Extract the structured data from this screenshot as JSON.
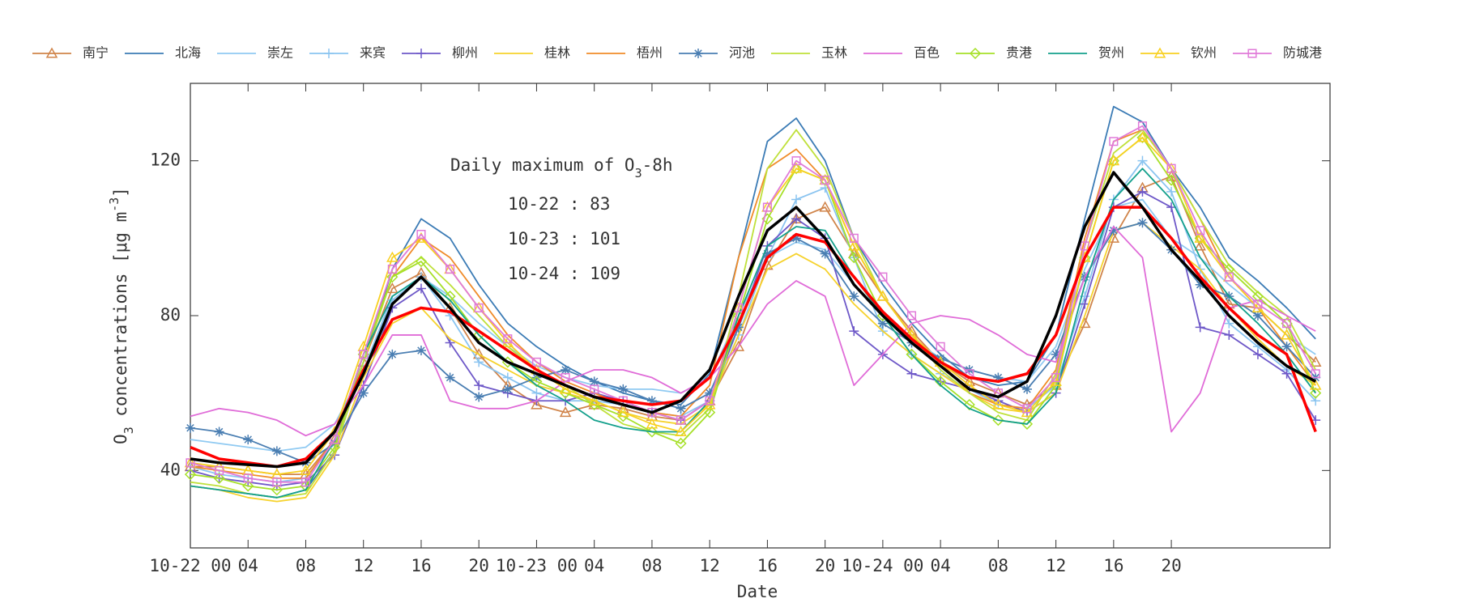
{
  "chart_data": {
    "type": "line",
    "xlabel": "Date",
    "ylabel": [
      "O",
      "3",
      " concentrations [μg m",
      "-3",
      "]"
    ],
    "annotation": {
      "title": [
        "Daily maximum of O",
        "3",
        "-8h"
      ],
      "lines": [
        "10-22 : 83",
        "10-23 : 101",
        "10-24 : 109"
      ]
    },
    "x": [
      0,
      2,
      4,
      6,
      8,
      10,
      12,
      14,
      16,
      18,
      20,
      22,
      24,
      26,
      28,
      30,
      32,
      34,
      36,
      38,
      40,
      42,
      44,
      46,
      48,
      50,
      52,
      54,
      56,
      58,
      60,
      62,
      64,
      66,
      68,
      70,
      72,
      74,
      76,
      78
    ],
    "xlim": [
      0,
      79
    ],
    "xticks": [
      {
        "value": 0,
        "label": "10-22 00"
      },
      {
        "value": 4,
        "label": "04"
      },
      {
        "value": 8,
        "label": "08"
      },
      12,
      16,
      20,
      {
        "value": 24,
        "label": "10-23 00"
      },
      {
        "value": 28,
        "label": "04"
      },
      {
        "value": 32,
        "label": "08"
      },
      {
        "value": 36,
        "label": "12"
      },
      {
        "value": 40,
        "label": "16"
      },
      {
        "value": 44,
        "label": "20"
      },
      {
        "value": 48,
        "label": "10-24 00"
      },
      {
        "value": 52,
        "label": "04"
      },
      {
        "value": 56,
        "label": "08"
      },
      {
        "value": 60,
        "label": "12"
      },
      {
        "value": 64,
        "label": "16"
      },
      {
        "value": 68,
        "label": "20"
      }
    ],
    "ylim": [
      20,
      140
    ],
    "yticks": [
      40,
      80,
      120
    ],
    "series": [
      {
        "name": "南宁",
        "color": "#d0844a",
        "marker": "triangle",
        "values": [
          41,
          41,
          40,
          39,
          39,
          48,
          68,
          87,
          91,
          82,
          70,
          62,
          57,
          55,
          57,
          56,
          54,
          53,
          58,
          72,
          93,
          105,
          108,
          96,
          85,
          76,
          68,
          63,
          60,
          57,
          62,
          78,
          100,
          113,
          116,
          98,
          83,
          82,
          75,
          68
        ]
      },
      {
        "name": "北海",
        "color": "#3b7bb5",
        "marker": null,
        "values": [
          36,
          35,
          34,
          33,
          35,
          45,
          68,
          92,
          105,
          100,
          88,
          78,
          72,
          67,
          63,
          60,
          58,
          57,
          65,
          95,
          125,
          131,
          120,
          100,
          88,
          78,
          70,
          64,
          62,
          63,
          75,
          105,
          134,
          130,
          118,
          108,
          95,
          89,
          82,
          74
        ]
      },
      {
        "name": "崇左",
        "color": "#90caf2",
        "marker": null,
        "values": [
          48,
          47,
          46,
          45,
          46,
          52,
          66,
          85,
          90,
          85,
          78,
          72,
          67,
          64,
          62,
          61,
          61,
          60,
          64,
          80,
          95,
          99,
          97,
          88,
          80,
          74,
          69,
          66,
          64,
          63,
          72,
          92,
          108,
          110,
          100,
          95,
          88,
          82,
          75,
          70
        ]
      },
      {
        "name": "来宾",
        "color": "#8ac4f0",
        "marker": "plus",
        "values": [
          41,
          39,
          38,
          37,
          38,
          47,
          66,
          84,
          90,
          80,
          68,
          64,
          60,
          58,
          58,
          57,
          55,
          54,
          58,
          75,
          95,
          110,
          113,
          95,
          76,
          70,
          65,
          61,
          57,
          56,
          62,
          85,
          110,
          120,
          112,
          92,
          78,
          72,
          66,
          58
        ]
      },
      {
        "name": "柳州",
        "color": "#6e58c8",
        "marker": "plus",
        "values": [
          40,
          38,
          37,
          36,
          37,
          44,
          62,
          82,
          87,
          73,
          62,
          60,
          58,
          58,
          60,
          58,
          55,
          53,
          58,
          77,
          98,
          105,
          100,
          76,
          70,
          65,
          63,
          61,
          58,
          55,
          60,
          83,
          108,
          112,
          108,
          77,
          75,
          70,
          65,
          53
        ]
      },
      {
        "name": "桂林",
        "color": "#f6d22c",
        "marker": null,
        "values": [
          36,
          35,
          33,
          32,
          33,
          44,
          64,
          78,
          82,
          74,
          70,
          66,
          62,
          60,
          58,
          55,
          53,
          52,
          57,
          75,
          92,
          96,
          92,
          83,
          76,
          70,
          65,
          60,
          56,
          55,
          60,
          80,
          102,
          104,
          98,
          92,
          82,
          74,
          67,
          62
        ]
      },
      {
        "name": "梧州",
        "color": "#f08c2a",
        "marker": null,
        "values": [
          41,
          40,
          39,
          38,
          38,
          48,
          70,
          90,
          100,
          95,
          85,
          75,
          68,
          63,
          60,
          57,
          55,
          54,
          62,
          95,
          118,
          123,
          115,
          98,
          85,
          75,
          68,
          60,
          57,
          56,
          66,
          100,
          125,
          128,
          118,
          105,
          90,
          82,
          72,
          62
        ]
      },
      {
        "name": "河池",
        "color": "#4a7eb2",
        "marker": "star",
        "values": [
          51,
          50,
          48,
          45,
          42,
          47,
          60,
          70,
          71,
          64,
          59,
          61,
          64,
          66,
          63,
          61,
          58,
          56,
          60,
          77,
          96,
          100,
          96,
          85,
          78,
          73,
          69,
          66,
          64,
          61,
          70,
          90,
          102,
          104,
          97,
          88,
          85,
          80,
          72,
          64
        ]
      },
      {
        "name": "玉林",
        "color": "#bfe03a",
        "marker": null,
        "values": [
          37,
          36,
          34,
          33,
          34,
          45,
          68,
          90,
          95,
          88,
          80,
          72,
          66,
          62,
          57,
          52,
          50,
          49,
          56,
          85,
          118,
          128,
          118,
          100,
          85,
          75,
          66,
          60,
          55,
          53,
          65,
          98,
          122,
          128,
          118,
          105,
          93,
          86,
          80,
          66
        ]
      },
      {
        "name": "百色",
        "color": "#e06cd8",
        "marker": null,
        "values": [
          54,
          56,
          55,
          53,
          49,
          52,
          62,
          75,
          75,
          58,
          56,
          56,
          58,
          63,
          66,
          66,
          64,
          60,
          64,
          72,
          83,
          89,
          85,
          62,
          70,
          78,
          80,
          79,
          75,
          70,
          68,
          90,
          103,
          95,
          50,
          60,
          82,
          84,
          80,
          76
        ]
      },
      {
        "name": "贵港",
        "color": "#a6e028",
        "marker": "diamond",
        "values": [
          39,
          38,
          36,
          35,
          36,
          46,
          70,
          90,
          94,
          85,
          75,
          68,
          63,
          60,
          57,
          54,
          50,
          47,
          55,
          80,
          105,
          118,
          115,
          95,
          80,
          70,
          63,
          57,
          53,
          52,
          62,
          95,
          120,
          126,
          115,
          100,
          92,
          85,
          78,
          60
        ]
      },
      {
        "name": "贺州",
        "color": "#14a08c",
        "marker": null,
        "values": [
          36,
          35,
          34,
          33,
          35,
          48,
          70,
          85,
          90,
          84,
          75,
          68,
          62,
          58,
          53,
          51,
          50,
          50,
          58,
          80,
          98,
          103,
          102,
          90,
          80,
          70,
          62,
          56,
          53,
          52,
          60,
          88,
          110,
          118,
          110,
          95,
          85,
          78,
          70,
          60
        ]
      },
      {
        "name": "钦州",
        "color": "#f8d020",
        "marker": "triangle",
        "values": [
          42,
          41,
          40,
          39,
          40,
          50,
          72,
          95,
          100,
          92,
          82,
          73,
          66,
          61,
          58,
          55,
          52,
          50,
          57,
          82,
          108,
          118,
          115,
          98,
          85,
          75,
          68,
          62,
          57,
          55,
          63,
          95,
          120,
          126,
          118,
          100,
          90,
          82,
          75,
          62
        ]
      },
      {
        "name": "防城港",
        "color": "#e07ad8",
        "marker": "square",
        "values": [
          42,
          40,
          38,
          37,
          37,
          48,
          70,
          92,
          101,
          92,
          82,
          74,
          68,
          64,
          61,
          58,
          55,
          53,
          58,
          82,
          108,
          120,
          115,
          100,
          90,
          80,
          72,
          65,
          60,
          56,
          64,
          98,
          125,
          129,
          118,
          102,
          90,
          83,
          78,
          65
        ]
      },
      {
        "color": "#ff0000",
        "width": 3.5,
        "marker": null,
        "values": [
          46,
          43,
          42,
          41,
          43,
          50,
          66,
          79,
          82,
          81,
          76,
          71,
          66,
          62,
          59,
          58,
          57,
          58,
          64,
          78,
          95,
          101,
          99,
          90,
          81,
          74,
          68,
          64,
          63,
          65,
          75,
          95,
          108,
          108,
          100,
          90,
          82,
          75,
          70,
          50
        ]
      },
      {
        "color": "#000000",
        "width": 3.5,
        "marker": null,
        "values": [
          43,
          42,
          41.5,
          41,
          42,
          50,
          65,
          83,
          90,
          82,
          73,
          68,
          65,
          62,
          59,
          57,
          55,
          58,
          66,
          85,
          102,
          108,
          100,
          88,
          80,
          73,
          67,
          61,
          59,
          63,
          80,
          103,
          117,
          108,
          97,
          89,
          80,
          73,
          67,
          63
        ]
      }
    ]
  }
}
